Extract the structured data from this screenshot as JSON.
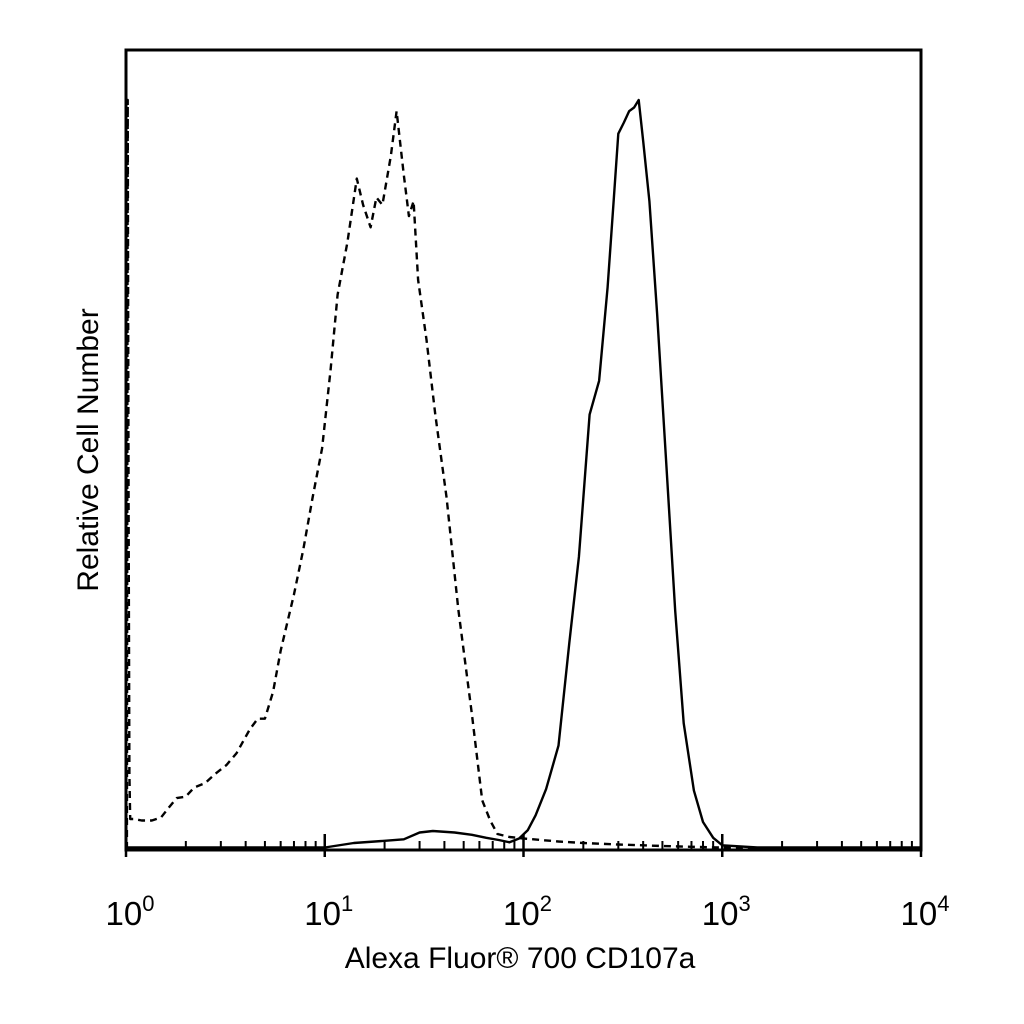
{
  "chart_data": {
    "type": "line",
    "title": "",
    "xlabel": "Alexa Fluor® 700 CD107a",
    "ylabel": "Relative Cell Number",
    "x_scale": "log",
    "xlim": [
      1,
      10000
    ],
    "ylim": [
      0,
      100
    ],
    "x_ticks": [
      {
        "value": 1,
        "base": "10",
        "exp": "0"
      },
      {
        "value": 10,
        "base": "10",
        "exp": "1"
      },
      {
        "value": 100,
        "base": "10",
        "exp": "2"
      },
      {
        "value": 1000,
        "base": "10",
        "exp": "3"
      },
      {
        "value": 10000,
        "base": "10",
        "exp": "4"
      }
    ],
    "y_tick_labels": false,
    "grid": false,
    "series": [
      {
        "style": "dashed",
        "color": "#000000",
        "x": [
          1.01,
          1.02,
          1.03,
          1.04,
          1.05,
          1.1,
          1.2,
          1.35,
          1.5,
          1.65,
          1.8,
          2.0,
          2.2,
          2.5,
          2.8,
          3.2,
          3.6,
          4.2,
          4.6,
          5.0,
          5.5,
          6.0,
          7.0,
          7.8,
          8.7,
          9.7,
          10.7,
          11.6,
          13.0,
          14.5,
          15.6,
          17.0,
          18.2,
          19.5,
          21.5,
          23.0,
          25.0,
          26.5,
          28.0,
          29.5,
          32.5,
          36.0,
          41.0,
          47.0,
          55.0,
          62.0,
          68.0,
          74.0,
          85.0,
          100.0,
          150.0,
          200.0,
          300.0,
          500.0,
          700.0,
          1000.0,
          3000.0,
          10000.0
        ],
        "y": [
          0,
          100,
          45,
          10,
          4.0,
          4.0,
          3.8,
          3.8,
          4.2,
          5.6,
          6.8,
          7.0,
          8.2,
          8.8,
          10.0,
          11.2,
          12.8,
          16.0,
          17.4,
          17.4,
          21.0,
          26.5,
          34.0,
          40.0,
          47.0,
          53.5,
          64.0,
          74.0,
          81.0,
          89.5,
          86.0,
          83.0,
          87.0,
          86.0,
          92.5,
          98.5,
          90.0,
          84.5,
          86.5,
          76.0,
          68.0,
          58.0,
          47.0,
          32.0,
          18.0,
          6.5,
          3.8,
          2.0,
          1.6,
          1.4,
          1.0,
          0.8,
          0.6,
          0.4,
          0.3,
          0.2,
          0.1,
          0.1
        ]
      },
      {
        "style": "solid",
        "color": "#000000",
        "x": [
          1.0,
          10.0,
          14.0,
          20.0,
          25.0,
          30.0,
          35.0,
          45.0,
          55.0,
          65.0,
          75.0,
          85.0,
          95.0,
          105.0,
          115.0,
          130.0,
          150.0,
          170.0,
          190.0,
          215.0,
          240.0,
          265.0,
          285.0,
          300.0,
          320.0,
          340.0,
          360.0,
          380.0,
          400.0,
          430.0,
          470.0,
          520.0,
          580.0,
          640.0,
          720.0,
          800.0,
          900.0,
          1000.0,
          1500.0,
          10000.0
        ],
        "y": [
          0.2,
          0.2,
          0.8,
          1.1,
          1.3,
          2.2,
          2.4,
          2.2,
          1.9,
          1.5,
          1.2,
          0.9,
          1.4,
          2.5,
          4.5,
          8.0,
          13.8,
          27.5,
          39.0,
          58.0,
          62.5,
          75.0,
          87.0,
          95.5,
          97.0,
          98.5,
          99.0,
          100.0,
          94.5,
          86.5,
          71.5,
          52.5,
          31.8,
          16.8,
          7.8,
          3.6,
          1.5,
          0.5,
          0.2,
          0.2
        ]
      }
    ]
  }
}
